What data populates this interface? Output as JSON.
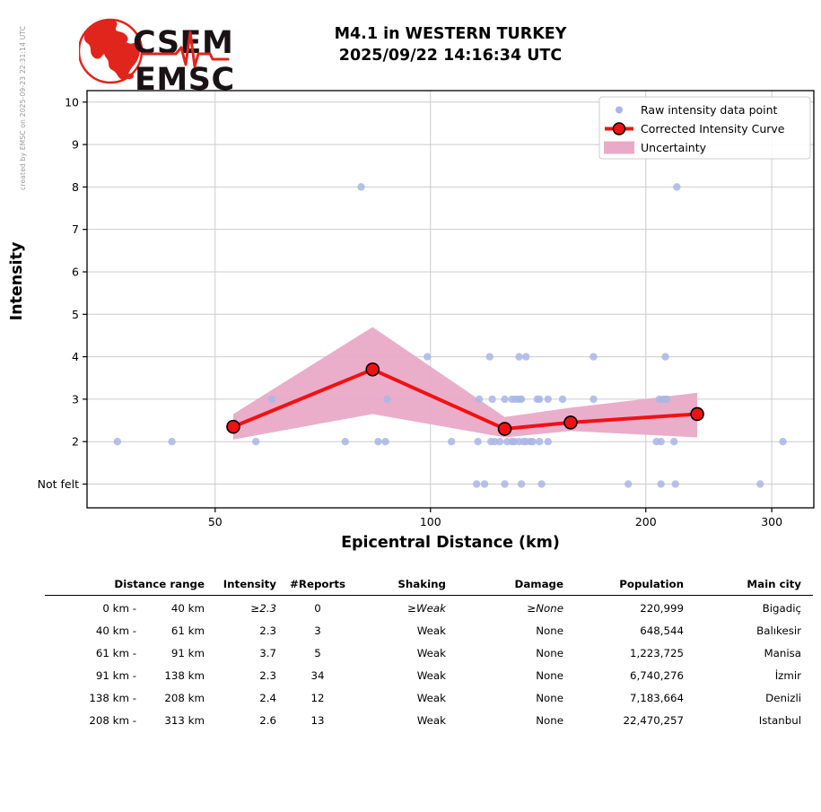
{
  "created_by": "created by EMSC on 2025-09-23 22:31:14 UTC",
  "logo": {
    "line1": "CSEM",
    "line2": "EMSC",
    "red": "#e0251c",
    "text_color": "#1a1214"
  },
  "header": {
    "title_line1": "M4.1 in WESTERN TURKEY",
    "title_line2": "2025/09/22 14:16:34 UTC"
  },
  "chart_data": {
    "type": "line",
    "xlabel": "Epicentral Distance (km)",
    "ylabel": "Intensity",
    "x_scale": "log",
    "xlim": [
      33.1,
      343.5
    ],
    "ylim": [
      0.44,
      10.27
    ],
    "x_ticks": [
      50,
      100,
      200,
      300
    ],
    "y_ticks": [
      {
        "value": 10,
        "label": "10"
      },
      {
        "value": 9,
        "label": "9"
      },
      {
        "value": 8,
        "label": "8"
      },
      {
        "value": 7,
        "label": "7"
      },
      {
        "value": 6,
        "label": "6"
      },
      {
        "value": 5,
        "label": "5"
      },
      {
        "value": 4,
        "label": "4"
      },
      {
        "value": 3,
        "label": "3"
      },
      {
        "value": 2,
        "label": "2"
      },
      {
        "value": 1,
        "label": "Not felt"
      }
    ],
    "grid": true,
    "legend": [
      {
        "label": "Raw intensity data point",
        "swatch": "point"
      },
      {
        "label": "Corrected Intensity Curve",
        "swatch": "line"
      },
      {
        "label": "Uncertainty",
        "swatch": "area"
      }
    ],
    "colors": {
      "raw_point": "#a9b6e6",
      "curve": "#f21111",
      "marker_edge": "#000000",
      "band": "#e9aac7",
      "grid": "#cccccc",
      "axis": "#000000"
    },
    "raw_points": [
      [
        80,
        8
      ],
      [
        221,
        8
      ],
      [
        99,
        4
      ],
      [
        121,
        4
      ],
      [
        133,
        4
      ],
      [
        136,
        4
      ],
      [
        169,
        4
      ],
      [
        213,
        4
      ],
      [
        60,
        3
      ],
      [
        87,
        3
      ],
      [
        117,
        3
      ],
      [
        122,
        3
      ],
      [
        127,
        3
      ],
      [
        130,
        3
      ],
      [
        131.5,
        3
      ],
      [
        133,
        3
      ],
      [
        134,
        3
      ],
      [
        141,
        3
      ],
      [
        142,
        3
      ],
      [
        146,
        3
      ],
      [
        153,
        3
      ],
      [
        169,
        3
      ],
      [
        209,
        3
      ],
      [
        212,
        3
      ],
      [
        214,
        3
      ],
      [
        36.5,
        2
      ],
      [
        43.5,
        2
      ],
      [
        57,
        2
      ],
      [
        76,
        2
      ],
      [
        84.5,
        2
      ],
      [
        86.5,
        2
      ],
      [
        107,
        2
      ],
      [
        116.5,
        2
      ],
      [
        121.5,
        2
      ],
      [
        123,
        2
      ],
      [
        125,
        2
      ],
      [
        128,
        2
      ],
      [
        130,
        2
      ],
      [
        131,
        2
      ],
      [
        133,
        2
      ],
      [
        135,
        2
      ],
      [
        136,
        2
      ],
      [
        138,
        2
      ],
      [
        139,
        2
      ],
      [
        142,
        2
      ],
      [
        146,
        2
      ],
      [
        207,
        2
      ],
      [
        210,
        2
      ],
      [
        219,
        2
      ],
      [
        311,
        2
      ],
      [
        116,
        1
      ],
      [
        119,
        1
      ],
      [
        127,
        1
      ],
      [
        134,
        1
      ],
      [
        143,
        1
      ],
      [
        189,
        1
      ],
      [
        210,
        1
      ],
      [
        220,
        1
      ],
      [
        289,
        1
      ]
    ],
    "corrected_curve": {
      "distance_km": [
        53,
        83,
        127,
        157,
        236
      ],
      "intensity": [
        2.35,
        3.7,
        2.3,
        2.45,
        2.65
      ]
    },
    "uncertainty_band": {
      "distance_km": [
        53,
        83,
        127,
        157,
        236
      ],
      "upper": [
        2.65,
        4.7,
        2.58,
        2.8,
        3.15
      ],
      "lower": [
        2.05,
        2.65,
        2.1,
        2.25,
        2.1
      ]
    }
  },
  "table": {
    "headers": [
      "Distance range",
      "Intensity",
      "#Reports",
      "Shaking",
      "Damage",
      "Population",
      "Main city"
    ],
    "rows": [
      {
        "range_from": "0 km -",
        "range_to": "40 km",
        "intensity": "≥2.3",
        "reports": "0",
        "shaking": "≥Weak",
        "damage": "≥None",
        "population": "220,999",
        "city": "Bigadiç"
      },
      {
        "range_from": "40 km -",
        "range_to": "61 km",
        "intensity": "2.3",
        "reports": "3",
        "shaking": "Weak",
        "damage": "None",
        "population": "648,544",
        "city": "Balıkesir"
      },
      {
        "range_from": "61 km -",
        "range_to": "91 km",
        "intensity": "3.7",
        "reports": "5",
        "shaking": "Weak",
        "damage": "None",
        "population": "1,223,725",
        "city": "Manisa"
      },
      {
        "range_from": "91 km -",
        "range_to": "138 km",
        "intensity": "2.3",
        "reports": "34",
        "shaking": "Weak",
        "damage": "None",
        "population": "6,740,276",
        "city": "İzmir"
      },
      {
        "range_from": "138 km -",
        "range_to": "208 km",
        "intensity": "2.4",
        "reports": "12",
        "shaking": "Weak",
        "damage": "None",
        "population": "7,183,664",
        "city": "Denizli"
      },
      {
        "range_from": "208 km -",
        "range_to": "313 km",
        "intensity": "2.6",
        "reports": "13",
        "shaking": "Weak",
        "damage": "None",
        "population": "22,470,257",
        "city": "Istanbul"
      }
    ]
  }
}
